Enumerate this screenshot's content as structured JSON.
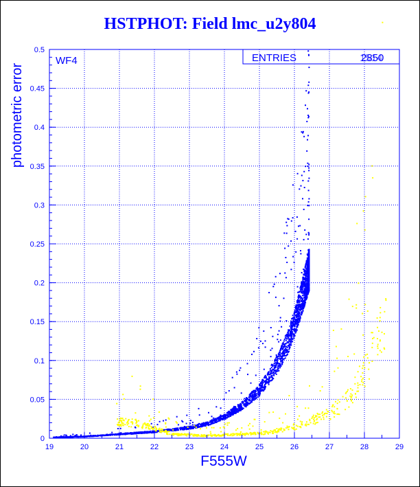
{
  "colors": {
    "axis": "#0000ff",
    "grid": "#0000ff",
    "series_main": "#0000ff",
    "series_secondary": "#ffff00",
    "title": "#0000ff",
    "frame": "#000000"
  },
  "chart_data": {
    "type": "scatter",
    "title": "HSTPHOT: Field lmc_u2y804",
    "xlabel": "F555W",
    "ylabel": "photometric error",
    "xlim": [
      19,
      29
    ],
    "ylim": [
      0,
      0.5
    ],
    "x_ticks": [
      "19",
      "20",
      "21",
      "22",
      "23",
      "24",
      "25",
      "26",
      "27",
      "28",
      "29"
    ],
    "y_ticks": [
      "0",
      "0.05",
      "0.1",
      "0.15",
      "0.2",
      "0.25",
      "0.3",
      "0.35",
      "0.4",
      "0.45",
      "0.5"
    ],
    "grid": true,
    "panel_label": "WF4",
    "stats_box": {
      "label": "ENTRIES",
      "value": "2850",
      "overlap_value": "1514"
    },
    "series": [
      {
        "color": "#0000ff",
        "trend": [
          [
            19.1,
            0.002
          ],
          [
            20,
            0.003
          ],
          [
            21,
            0.006
          ],
          [
            22,
            0.009
          ],
          [
            23,
            0.014
          ],
          [
            23.5,
            0.019
          ],
          [
            24,
            0.028
          ],
          [
            24.5,
            0.042
          ],
          [
            25,
            0.062
          ],
          [
            25.5,
            0.094
          ],
          [
            25.8,
            0.122
          ],
          [
            26,
            0.146
          ],
          [
            26.2,
            0.178
          ],
          [
            26.4,
            0.212
          ]
        ],
        "approx_points": 2850
      },
      {
        "color": "#ffff00",
        "trend": [
          [
            20.9,
            0.022
          ],
          [
            21.5,
            0.02
          ],
          [
            22.5,
            0.006
          ],
          [
            23.5,
            0.004
          ],
          [
            24,
            0.005
          ],
          [
            25,
            0.007
          ],
          [
            25.5,
            0.01
          ],
          [
            26,
            0.016
          ],
          [
            26.5,
            0.024
          ],
          [
            27,
            0.033
          ],
          [
            27.5,
            0.05
          ],
          [
            28,
            0.09
          ],
          [
            28.6,
            0.155
          ]
        ],
        "approx_points": 650
      }
    ]
  }
}
